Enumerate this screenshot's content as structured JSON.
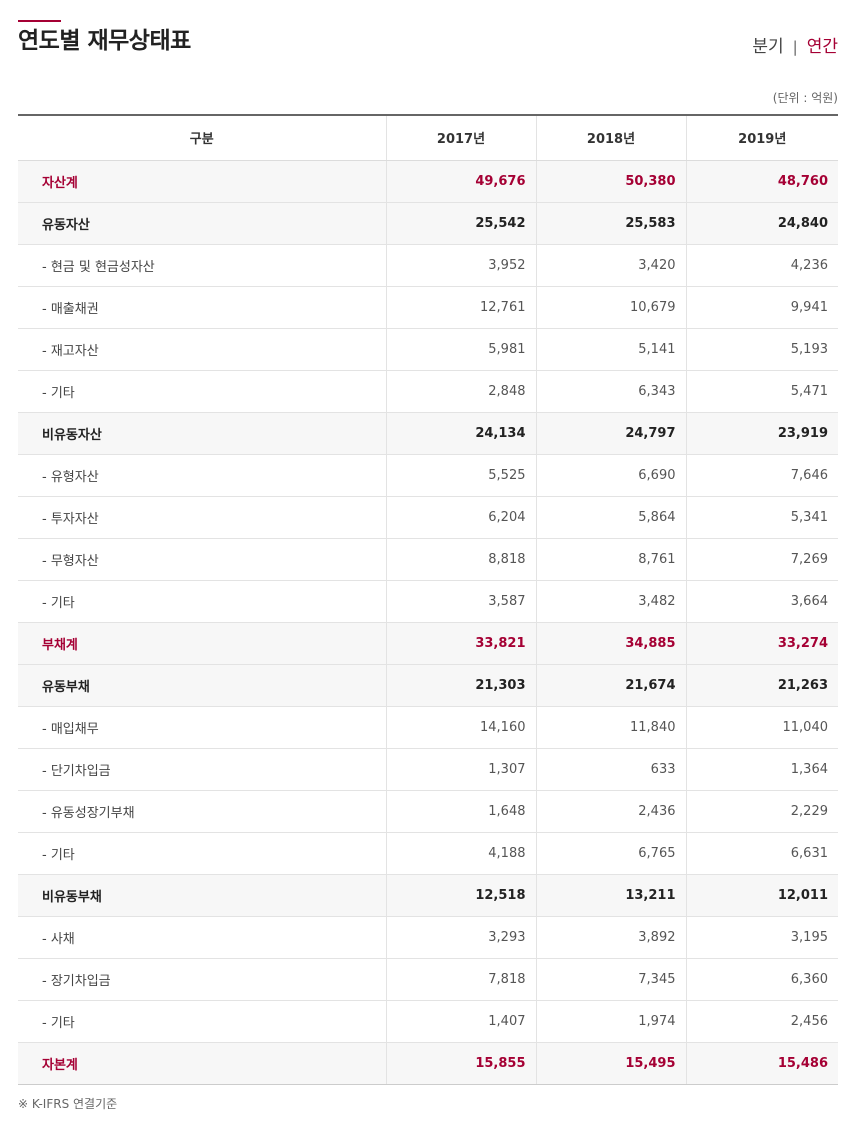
{
  "header": {
    "title": "연도별 재무상태표",
    "toggle": {
      "quarter_label": "분기",
      "separator": "|",
      "annual_label": "연간",
      "active": "annual",
      "accent_color": "#a50034"
    }
  },
  "unit_note": "(단위 : 억원)",
  "table": {
    "columns": [
      "구분",
      "2017년",
      "2018년",
      "2019년"
    ],
    "rows": [
      {
        "type": "total",
        "label": "자산계",
        "values": [
          "49,676",
          "50,380",
          "48,760"
        ]
      },
      {
        "type": "subtotal",
        "label": "유동자산",
        "values": [
          "25,542",
          "25,583",
          "24,840"
        ]
      },
      {
        "type": "item",
        "label": "- 현금 및 현금성자산",
        "values": [
          "3,952",
          "3,420",
          "4,236"
        ]
      },
      {
        "type": "item",
        "label": "- 매출채권",
        "values": [
          "12,761",
          "10,679",
          "9,941"
        ]
      },
      {
        "type": "item",
        "label": "- 재고자산",
        "values": [
          "5,981",
          "5,141",
          "5,193"
        ]
      },
      {
        "type": "item",
        "label": "- 기타",
        "values": [
          "2,848",
          "6,343",
          "5,471"
        ]
      },
      {
        "type": "subtotal",
        "label": "비유동자산",
        "values": [
          "24,134",
          "24,797",
          "23,919"
        ]
      },
      {
        "type": "item",
        "label": "- 유형자산",
        "values": [
          "5,525",
          "6,690",
          "7,646"
        ]
      },
      {
        "type": "item",
        "label": "- 투자자산",
        "values": [
          "6,204",
          "5,864",
          "5,341"
        ]
      },
      {
        "type": "item",
        "label": "- 무형자산",
        "values": [
          "8,818",
          "8,761",
          "7,269"
        ]
      },
      {
        "type": "item",
        "label": "- 기타",
        "values": [
          "3,587",
          "3,482",
          "3,664"
        ]
      },
      {
        "type": "total",
        "label": "부채계",
        "values": [
          "33,821",
          "34,885",
          "33,274"
        ]
      },
      {
        "type": "subtotal",
        "label": "유동부채",
        "values": [
          "21,303",
          "21,674",
          "21,263"
        ]
      },
      {
        "type": "item",
        "label": "- 매입채무",
        "values": [
          "14,160",
          "11,840",
          "11,040"
        ]
      },
      {
        "type": "item",
        "label": "- 단기차입금",
        "values": [
          "1,307",
          "633",
          "1,364"
        ]
      },
      {
        "type": "item",
        "label": "- 유동성장기부채",
        "values": [
          "1,648",
          "2,436",
          "2,229"
        ]
      },
      {
        "type": "item",
        "label": "- 기타",
        "values": [
          "4,188",
          "6,765",
          "6,631"
        ]
      },
      {
        "type": "subtotal",
        "label": "비유동부채",
        "values": [
          "12,518",
          "13,211",
          "12,011"
        ]
      },
      {
        "type": "item",
        "label": "- 사채",
        "values": [
          "3,293",
          "3,892",
          "3,195"
        ]
      },
      {
        "type": "item",
        "label": "- 장기차입금",
        "values": [
          "7,818",
          "7,345",
          "6,360"
        ]
      },
      {
        "type": "item",
        "label": "- 기타",
        "values": [
          "1,407",
          "1,974",
          "2,456"
        ]
      },
      {
        "type": "total",
        "label": "자본계",
        "values": [
          "15,855",
          "15,495",
          "15,486"
        ]
      }
    ]
  },
  "footnote": "※ K-IFRS 연결기준"
}
